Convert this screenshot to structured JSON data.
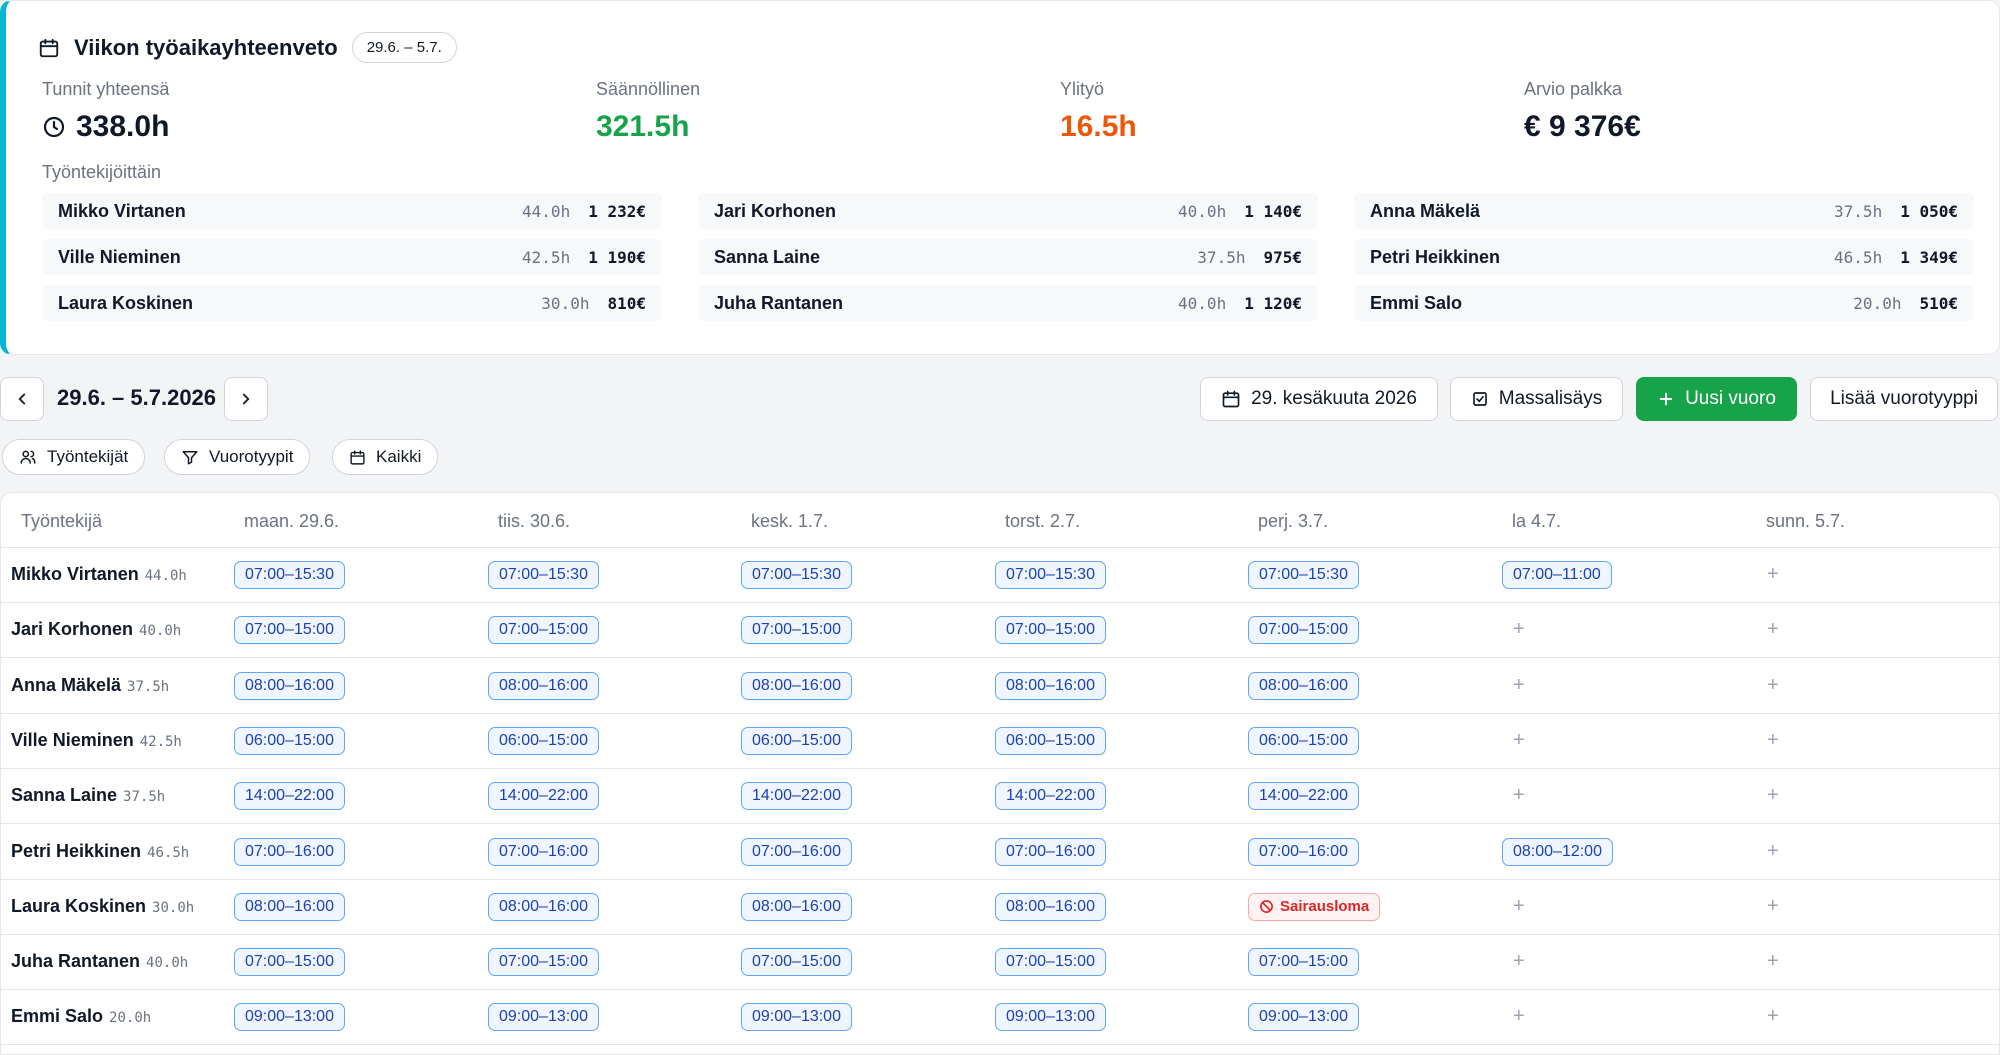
{
  "summary": {
    "title": "Viikon työaikayhteenveto",
    "range": "29.6. – 5.7.",
    "stats": [
      {
        "label": "Tunnit yhteensä",
        "value": "338.0h",
        "color": "#111827"
      },
      {
        "label": "Säännöllinen",
        "value": "321.5h",
        "color": "#16a34a"
      },
      {
        "label": "Ylityö",
        "value": "16.5h",
        "color": "#ea580c"
      },
      {
        "label": "Arvio palkka",
        "value": "€ 9 376€",
        "color": "#111827"
      }
    ],
    "by_employee_label": "Työntekijöittäin",
    "employees": [
      {
        "name": "Mikko Virtanen",
        "hours": "44.0h",
        "pay": "1 232€"
      },
      {
        "name": "Jari Korhonen",
        "hours": "40.0h",
        "pay": "1 140€"
      },
      {
        "name": "Anna Mäkelä",
        "hours": "37.5h",
        "pay": "1 050€"
      },
      {
        "name": "Ville Nieminen",
        "hours": "42.5h",
        "pay": "1 190€"
      },
      {
        "name": "Sanna Laine",
        "hours": "37.5h",
        "pay": "975€"
      },
      {
        "name": "Petri Heikkinen",
        "hours": "46.5h",
        "pay": "1 349€"
      },
      {
        "name": "Laura Koskinen",
        "hours": "30.0h",
        "pay": "810€"
      },
      {
        "name": "Juha Rantanen",
        "hours": "40.0h",
        "pay": "1 120€"
      },
      {
        "name": "Emmi Salo",
        "hours": "20.0h",
        "pay": "510€"
      }
    ]
  },
  "toolbar": {
    "week_label": "29.6. – 5.7.2026",
    "date_button": "29. kesäkuuta 2026",
    "bulk_add": "Massalisäys",
    "new_shift": "Uusi vuoro",
    "add_shift_type": "Lisää vuorotyyppi"
  },
  "filters": {
    "employees": "Työntekijät",
    "shift_types": "Vuorotyypit",
    "all": "Kaikki"
  },
  "schedule": {
    "employee_col": "Työntekijä",
    "days": [
      "maan. 29.6.",
      "tiis. 30.6.",
      "kesk. 1.7.",
      "torst. 2.7.",
      "perj. 3.7.",
      "la 4.7.",
      "sunn. 5.7."
    ],
    "add_symbol": "+",
    "rows": [
      {
        "name": "Mikko Virtanen",
        "hours": "44.0h",
        "shifts": [
          "07:00–15:30",
          "07:00–15:30",
          "07:00–15:30",
          "07:00–15:30",
          "07:00–15:30",
          "07:00–11:00",
          ""
        ]
      },
      {
        "name": "Jari Korhonen",
        "hours": "40.0h",
        "shifts": [
          "07:00–15:00",
          "07:00–15:00",
          "07:00–15:00",
          "07:00–15:00",
          "07:00–15:00",
          "",
          ""
        ]
      },
      {
        "name": "Anna Mäkelä",
        "hours": "37.5h",
        "shifts": [
          "08:00–16:00",
          "08:00–16:00",
          "08:00–16:00",
          "08:00–16:00",
          "08:00–16:00",
          "",
          ""
        ]
      },
      {
        "name": "Ville Nieminen",
        "hours": "42.5h",
        "shifts": [
          "06:00–15:00",
          "06:00–15:00",
          "06:00–15:00",
          "06:00–15:00",
          "06:00–15:00",
          "",
          ""
        ]
      },
      {
        "name": "Sanna Laine",
        "hours": "37.5h",
        "shifts": [
          "14:00–22:00",
          "14:00–22:00",
          "14:00–22:00",
          "14:00–22:00",
          "14:00–22:00",
          "",
          ""
        ]
      },
      {
        "name": "Petri Heikkinen",
        "hours": "46.5h",
        "shifts": [
          "07:00–16:00",
          "07:00–16:00",
          "07:00–16:00",
          "07:00–16:00",
          "07:00–16:00",
          "08:00–12:00",
          ""
        ]
      },
      {
        "name": "Laura Koskinen",
        "hours": "30.0h",
        "shifts": [
          "08:00–16:00",
          "08:00–16:00",
          "08:00–16:00",
          "08:00–16:00",
          "Sairausloma",
          "",
          ""
        ],
        "sick_day_index": 4
      },
      {
        "name": "Juha Rantanen",
        "hours": "40.0h",
        "shifts": [
          "07:00–15:00",
          "07:00–15:00",
          "07:00–15:00",
          "07:00–15:00",
          "07:00–15:00",
          "",
          ""
        ]
      },
      {
        "name": "Emmi Salo",
        "hours": "20.0h",
        "shifts": [
          "09:00–13:00",
          "09:00–13:00",
          "09:00–13:00",
          "09:00–13:00",
          "09:00–13:00",
          "",
          ""
        ]
      }
    ]
  },
  "colors": {
    "accent": "#06b6d4",
    "primary": "#16a34a",
    "overtime": "#ea580c",
    "shift_border": "#60a5fa",
    "sick": "#dc2626"
  }
}
